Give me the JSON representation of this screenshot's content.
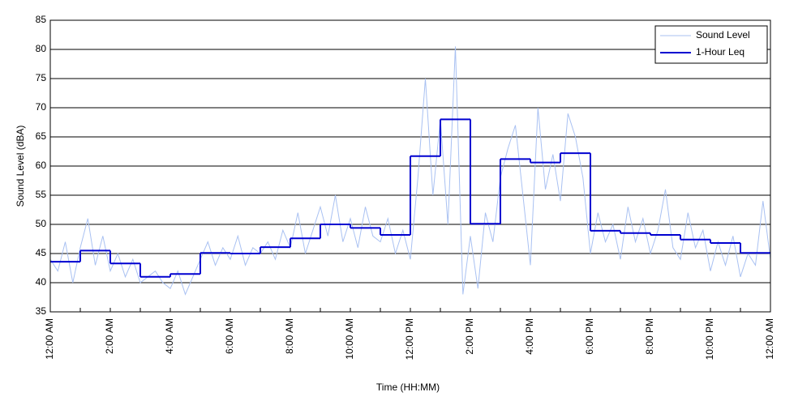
{
  "chart_data": {
    "type": "line",
    "xlabel": "Time (HH:MM)",
    "ylabel": "Sound Level (dBA)",
    "xlim": [
      0,
      24
    ],
    "xticks": [
      {
        "value": 0,
        "label": "12:00 AM"
      },
      {
        "value": 2,
        "label": "2:00 AM"
      },
      {
        "value": 4,
        "label": "4:00 AM"
      },
      {
        "value": 6,
        "label": "6:00 AM"
      },
      {
        "value": 8,
        "label": "8:00 AM"
      },
      {
        "value": 10,
        "label": "10:00 AM"
      },
      {
        "value": 12,
        "label": "12:00 PM"
      },
      {
        "value": 14,
        "label": "2:00 PM"
      },
      {
        "value": 16,
        "label": "4:00 PM"
      },
      {
        "value": 18,
        "label": "6:00 PM"
      },
      {
        "value": 20,
        "label": "8:00 PM"
      },
      {
        "value": 22,
        "label": "10:00 PM"
      },
      {
        "value": 24,
        "label": "12:00 AM"
      }
    ],
    "minor_xticks": [
      1,
      3,
      5,
      7,
      9,
      11,
      13,
      15,
      17,
      19,
      21,
      23
    ],
    "ylim": [
      35,
      85
    ],
    "yticks": [
      35,
      40,
      45,
      50,
      55,
      60,
      65,
      70,
      75,
      80,
      85
    ],
    "grid": true,
    "legend": "upper right",
    "series": [
      {
        "name": "Sound Level",
        "color": "#a9c1f2",
        "width": 1,
        "x": [
          0,
          0.25,
          0.5,
          0.75,
          1,
          1.25,
          1.5,
          1.75,
          2,
          2.25,
          2.5,
          2.75,
          3,
          3.25,
          3.5,
          3.75,
          4,
          4.25,
          4.5,
          4.75,
          5,
          5.25,
          5.5,
          5.75,
          6,
          6.25,
          6.5,
          6.75,
          7,
          7.25,
          7.5,
          7.75,
          8,
          8.25,
          8.5,
          8.75,
          9,
          9.25,
          9.5,
          9.75,
          10,
          10.25,
          10.5,
          10.75,
          11,
          11.25,
          11.5,
          11.75,
          12,
          12.25,
          12.5,
          12.75,
          13,
          13.25,
          13.5,
          13.75,
          14,
          14.25,
          14.5,
          14.75,
          15,
          15.25,
          15.5,
          15.75,
          16,
          16.25,
          16.5,
          16.75,
          17,
          17.25,
          17.5,
          17.75,
          18,
          18.25,
          18.5,
          18.75,
          19,
          19.25,
          19.5,
          19.75,
          20,
          20.25,
          20.5,
          20.75,
          21,
          21.25,
          21.5,
          21.75,
          22,
          22.25,
          22.5,
          22.75,
          23,
          23.25,
          23.5,
          23.75,
          24
        ],
        "values": [
          44,
          42,
          47,
          40,
          46,
          51,
          43,
          48,
          42,
          45,
          41,
          44,
          40,
          41,
          42,
          40,
          39,
          42,
          38,
          41,
          44,
          47,
          43,
          46,
          44,
          48,
          43,
          46,
          45,
          47,
          44,
          49,
          46,
          52,
          45,
          49,
          53,
          48,
          55,
          47,
          51,
          46,
          53,
          48,
          47,
          51,
          45,
          49,
          44,
          58,
          75,
          55,
          68,
          50,
          80.5,
          38,
          48,
          39,
          52,
          47,
          58,
          63,
          67,
          55,
          43,
          70,
          56,
          62,
          54,
          69,
          65,
          58,
          45,
          52,
          47,
          50,
          44,
          53,
          47,
          51,
          45,
          49,
          56,
          46,
          44,
          52,
          46,
          49,
          42,
          47,
          43,
          48,
          41,
          45,
          43,
          54,
          44
        ]
      },
      {
        "name": "1-Hour Leq",
        "color": "#0000d0",
        "width": 2,
        "step": "post",
        "x": [
          0,
          1,
          2,
          3,
          4,
          5,
          6,
          7,
          8,
          9,
          10,
          11,
          12,
          13,
          14,
          15,
          16,
          17,
          18,
          19,
          20,
          21,
          22,
          23
        ],
        "values": [
          43.6,
          45.5,
          43.3,
          41.0,
          41.5,
          45.1,
          45.0,
          46.1,
          47.6,
          50.0,
          49.4,
          48.2,
          61.7,
          68.0,
          50.1,
          61.2,
          60.6,
          62.2,
          48.9,
          48.5,
          48.2,
          47.4,
          46.8,
          45.1
        ]
      }
    ]
  }
}
